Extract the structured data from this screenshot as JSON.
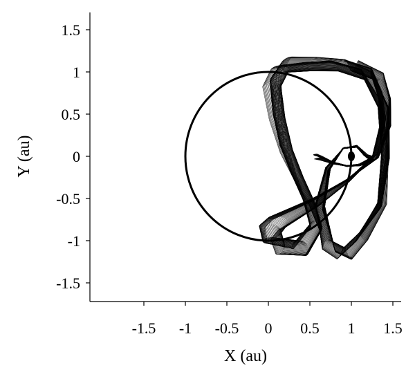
{
  "chart_data": {
    "type": "line",
    "title": "",
    "xlabel": "X (au)",
    "ylabel": "Y (au)",
    "xlim": [
      -1.5,
      1.5
    ],
    "ylim": [
      -1.5,
      1.5
    ],
    "xticks": [
      "-1.5",
      "-1",
      "-0.5",
      "0",
      "0.5",
      "1",
      "1.5"
    ],
    "yticks": [
      "1.5",
      "1",
      "0.5",
      "0",
      "-0.5",
      "-1",
      "-1.5"
    ],
    "grid": false,
    "legend": "none",
    "series": [
      {
        "style": "circle-orbit",
        "color": "#000000",
        "center": [
          0.0,
          0.0
        ],
        "radius": 1.0
      },
      {
        "style": "dense-horseshoe-bundle",
        "color": "#000000",
        "x": [
          1.0,
          1.33,
          1.43,
          1.45,
          1.32,
          0.95,
          0.55,
          0.25,
          0.05,
          -0.05,
          0.0,
          0.35,
          0.55,
          0.45,
          0.3,
          0.15,
          0.05,
          0.0,
          0.12,
          0.45,
          0.82,
          1.2,
          1.42,
          1.45,
          1.38,
          1.12,
          0.92,
          0.72,
          0.6,
          0.7,
          0.9,
          1.08,
          1.2,
          1.28,
          1.12,
          0.95,
          0.78,
          0.62,
          0.55
        ],
        "y": [
          1.12,
          1.0,
          0.72,
          0.4,
          0.0,
          -0.3,
          -0.55,
          -0.7,
          -0.8,
          -0.9,
          -1.08,
          -1.12,
          -0.85,
          -0.55,
          -0.25,
          0.1,
          0.5,
          0.9,
          1.1,
          1.12,
          1.12,
          1.0,
          0.6,
          0.0,
          -0.6,
          -1.0,
          -1.2,
          -1.1,
          -0.6,
          -0.15,
          0.1,
          0.12,
          0.0,
          -0.03,
          -0.1,
          -0.12,
          -0.08,
          -0.02,
          0.0
        ]
      },
      {
        "style": "marker",
        "color": "#000000",
        "x": [
          1.0
        ],
        "y": [
          0.0
        ]
      }
    ]
  }
}
